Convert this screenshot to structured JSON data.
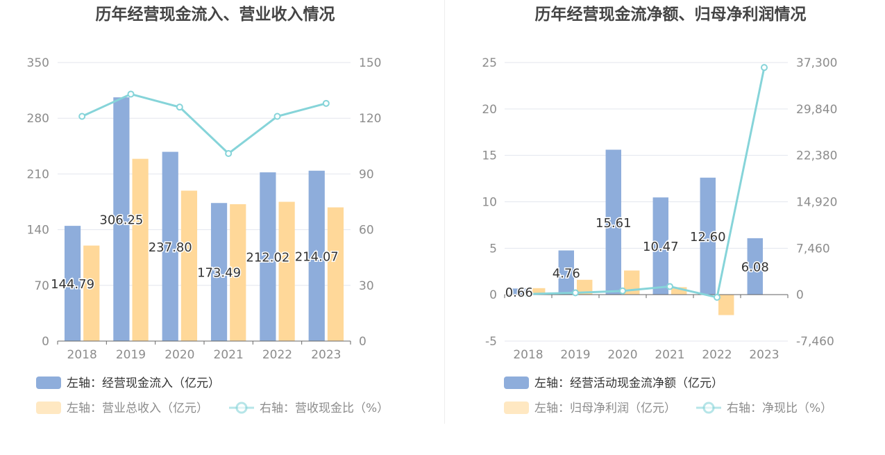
{
  "charts": [
    {
      "title": "历年经营现金流入、营业收入情况",
      "left_axis": {
        "min": 0,
        "max": 350,
        "ticks": [
          "0",
          "70",
          "140",
          "210",
          "280",
          "350"
        ]
      },
      "right_axis": {
        "min": 0,
        "max": 150,
        "ticks": [
          "0",
          "30",
          "60",
          "90",
          "120",
          "150"
        ]
      },
      "legend": [
        {
          "label": "左轴：经营现金流入（亿元）",
          "color": "#8eaddb",
          "kind": "bar"
        },
        {
          "label": "左轴：营业总收入（亿元）",
          "color": "#ffd899",
          "kind": "bar"
        },
        {
          "label": "右轴：营收现金比（%）",
          "color": "#86d4d9",
          "kind": "line"
        }
      ]
    },
    {
      "title": "历年经营现金流净额、归母净利润情况",
      "left_axis": {
        "min": -5,
        "max": 25,
        "ticks": [
          "-5",
          "0",
          "5",
          "10",
          "15",
          "20",
          "25"
        ]
      },
      "right_axis": {
        "min": -7460,
        "max": 37300,
        "ticks": [
          "-7,460",
          "0",
          "7,460",
          "14,920",
          "22,380",
          "29,840",
          "37,300"
        ]
      },
      "legend": [
        {
          "label": "左轴：经营活动现金流净额（亿元）",
          "color": "#8eaddb",
          "kind": "bar"
        },
        {
          "label": "左轴：归母净利润（亿元）",
          "color": "#ffd899",
          "kind": "bar"
        },
        {
          "label": "右轴：净现比（%）",
          "color": "#86d4d9",
          "kind": "line"
        }
      ]
    }
  ],
  "chart_data": [
    {
      "type": "bar",
      "title": "历年经营现金流入、营业收入情况",
      "categories": [
        "2018",
        "2019",
        "2020",
        "2021",
        "2022",
        "2023"
      ],
      "ylim": [
        0,
        350
      ],
      "y2lim": [
        0,
        150
      ],
      "series": [
        {
          "name": "经营现金流入（亿元）",
          "axis": "left",
          "type": "bar",
          "color": "#8eaddb",
          "values": [
            144.79,
            306.25,
            237.8,
            173.49,
            212.02,
            214.07
          ],
          "labels": [
            "144.79",
            "306.25",
            "237.80",
            "173.49",
            "212.02",
            "214.07"
          ]
        },
        {
          "name": "营业总收入（亿元）",
          "axis": "left",
          "type": "bar",
          "color": "#ffd899",
          "values": [
            120,
            229,
            189,
            172,
            175,
            168
          ]
        },
        {
          "name": "营收现金比（%）",
          "axis": "right",
          "type": "line",
          "color": "#86d4d9",
          "values": [
            121,
            133,
            126,
            101,
            121,
            128
          ]
        }
      ]
    },
    {
      "type": "bar",
      "title": "历年经营现金流净额、归母净利润情况",
      "categories": [
        "2018",
        "2019",
        "2020",
        "2021",
        "2022",
        "2023"
      ],
      "ylim": [
        -5,
        25
      ],
      "y2lim": [
        -7460,
        37300
      ],
      "series": [
        {
          "name": "经营活动现金流净额（亿元）",
          "axis": "left",
          "type": "bar",
          "color": "#8eaddb",
          "values": [
            0.66,
            4.76,
            15.61,
            10.47,
            12.6,
            6.08
          ],
          "labels": [
            "0.66",
            "4.76",
            "15.61",
            "10.47",
            "12.60",
            "6.08"
          ]
        },
        {
          "name": "归母净利润（亿元）",
          "axis": "left",
          "type": "bar",
          "color": "#ffd899",
          "values": [
            0.7,
            1.6,
            2.6,
            0.8,
            -2.2,
            0
          ]
        },
        {
          "name": "净现比（%）",
          "axis": "right",
          "type": "line",
          "color": "#86d4d9",
          "values": [
            94,
            298,
            600,
            1309,
            -430,
            36500
          ]
        }
      ]
    }
  ]
}
